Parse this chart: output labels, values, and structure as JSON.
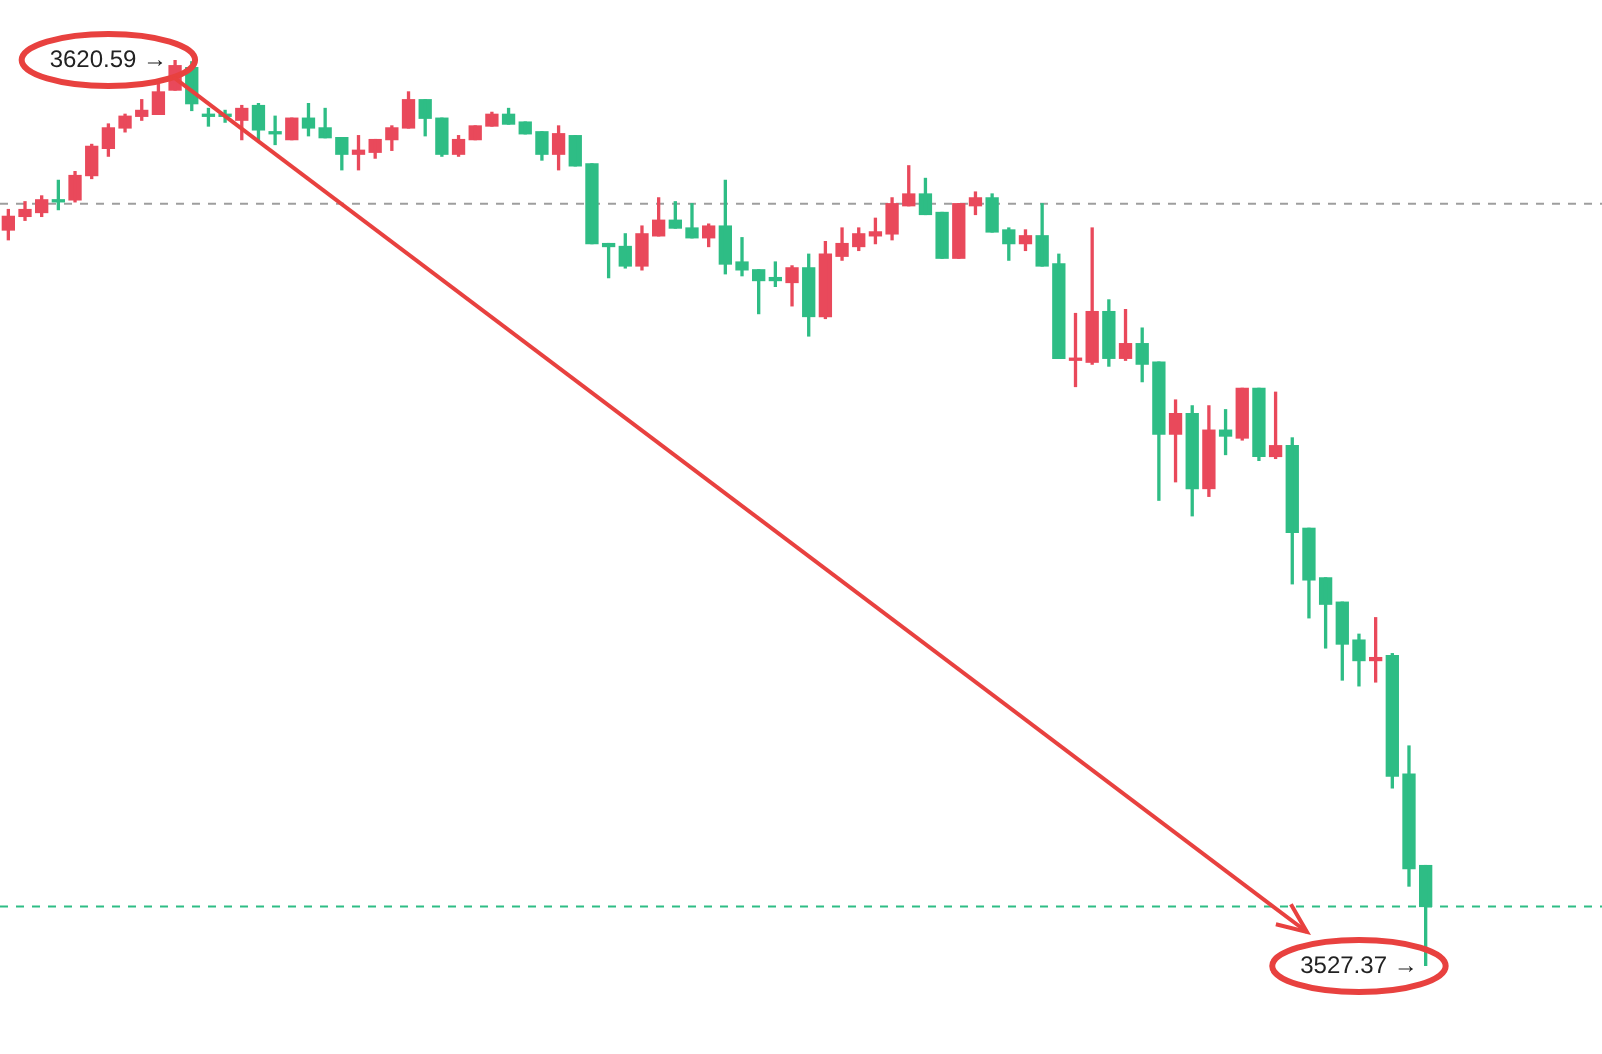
{
  "chart_data": {
    "type": "candlestick",
    "categories": [
      null,
      null,
      null,
      null,
      null,
      null,
      null,
      null,
      null,
      null,
      null,
      null,
      null,
      null,
      null,
      null,
      null,
      null,
      null,
      null,
      null,
      null,
      null,
      null,
      null,
      null,
      null,
      null,
      null,
      null,
      null,
      null,
      null,
      null,
      null,
      null,
      null,
      null,
      null,
      null,
      null,
      null,
      null,
      null,
      null,
      null,
      null,
      null,
      null,
      null,
      null,
      null,
      null,
      null,
      null,
      null,
      null,
      null,
      null,
      null,
      null,
      null,
      null,
      null,
      null,
      null,
      null,
      null,
      null,
      null,
      null,
      null,
      null,
      null,
      null,
      null,
      null,
      null,
      null,
      null,
      null,
      null,
      null,
      null,
      null,
      null
    ],
    "ohlc": [
      [
        3603.1,
        3605.2,
        3602.1,
        3604.5
      ],
      [
        3604.5,
        3606.0,
        3604.1,
        3605.2
      ],
      [
        3604.9,
        3606.6,
        3604.5,
        3606.2
      ],
      [
        3606.2,
        3608.2,
        3605.2,
        3606.0
      ],
      [
        3606.2,
        3609.1,
        3606.0,
        3608.7
      ],
      [
        3608.7,
        3611.9,
        3608.4,
        3611.7
      ],
      [
        3611.5,
        3614.0,
        3610.7,
        3613.6
      ],
      [
        3613.6,
        3615.0,
        3613.2,
        3614.8
      ],
      [
        3614.8,
        3616.5,
        3614.4,
        3615.4
      ],
      [
        3615.0,
        3618.1,
        3615.0,
        3617.3
      ],
      [
        3617.5,
        3620.59,
        3617.5,
        3620.0
      ],
      [
        3619.8,
        3620.4,
        3615.4,
        3616.1
      ],
      [
        3615.0,
        3615.6,
        3613.8,
        3614.8
      ],
      [
        3615.0,
        3615.4,
        3614.2,
        3614.8
      ],
      [
        3614.4,
        3615.9,
        3612.4,
        3615.6
      ],
      [
        3615.9,
        3616.1,
        3612.4,
        3613.4
      ],
      [
        3613.2,
        3614.8,
        3611.9,
        3613.0
      ],
      [
        3612.4,
        3614.6,
        3612.4,
        3614.6
      ],
      [
        3614.6,
        3616.1,
        3612.8,
        3613.6
      ],
      [
        3613.6,
        3615.6,
        3612.6,
        3612.6
      ],
      [
        3612.6,
        3612.6,
        3609.3,
        3610.9
      ],
      [
        3610.9,
        3612.8,
        3609.3,
        3611.3
      ],
      [
        3611.1,
        3612.4,
        3610.5,
        3612.4
      ],
      [
        3612.4,
        3613.8,
        3611.3,
        3613.6
      ],
      [
        3613.6,
        3617.3,
        3613.6,
        3616.5
      ],
      [
        3616.5,
        3616.5,
        3612.8,
        3614.6
      ],
      [
        3614.6,
        3614.6,
        3610.7,
        3610.9
      ],
      [
        3610.9,
        3612.8,
        3610.7,
        3612.4
      ],
      [
        3612.4,
        3613.8,
        3612.4,
        3613.8
      ],
      [
        3613.8,
        3615.2,
        3613.8,
        3615.0
      ],
      [
        3615.0,
        3615.6,
        3614.0,
        3614.0
      ],
      [
        3614.2,
        3614.2,
        3613.0,
        3613.0
      ],
      [
        3613.2,
        3613.2,
        3610.3,
        3610.9
      ],
      [
        3610.9,
        3613.8,
        3609.3,
        3613.0
      ],
      [
        3612.8,
        3612.8,
        3609.7,
        3609.7
      ],
      [
        3609.9,
        3609.9,
        3601.7,
        3601.7
      ],
      [
        3601.7,
        3601.7,
        3598.2,
        3601.4
      ],
      [
        3601.4,
        3602.7,
        3599.2,
        3599.4
      ],
      [
        3599.4,
        3603.5,
        3599.0,
        3602.7
      ],
      [
        3602.5,
        3606.4,
        3602.5,
        3604.1
      ],
      [
        3604.1,
        3606.0,
        3603.3,
        3603.3
      ],
      [
        3603.3,
        3605.8,
        3602.3,
        3602.3
      ],
      [
        3602.3,
        3603.7,
        3601.4,
        3603.5
      ],
      [
        3603.5,
        3608.2,
        3598.6,
        3599.6
      ],
      [
        3599.8,
        3602.3,
        3598.4,
        3599.0
      ],
      [
        3599.0,
        3599.0,
        3594.5,
        3597.9
      ],
      [
        3598.2,
        3599.8,
        3597.3,
        3597.9
      ],
      [
        3597.7,
        3599.4,
        3595.3,
        3599.2
      ],
      [
        3599.2,
        3600.6,
        3592.2,
        3594.2
      ],
      [
        3594.2,
        3601.9,
        3594.0,
        3600.6
      ],
      [
        3600.4,
        3603.3,
        3600.0,
        3601.7
      ],
      [
        3601.4,
        3603.3,
        3601.0,
        3602.7
      ],
      [
        3602.5,
        3604.3,
        3601.7,
        3602.9
      ],
      [
        3602.7,
        3606.4,
        3602.1,
        3605.8
      ],
      [
        3605.6,
        3609.7,
        3605.6,
        3606.8
      ],
      [
        3606.8,
        3608.4,
        3604.7,
        3604.7
      ],
      [
        3604.9,
        3604.9,
        3600.2,
        3600.2
      ],
      [
        3600.2,
        3605.8,
        3600.2,
        3605.8
      ],
      [
        3605.6,
        3607.0,
        3604.7,
        3606.4
      ],
      [
        3606.4,
        3606.8,
        3602.9,
        3602.9
      ],
      [
        3603.1,
        3603.3,
        3600.0,
        3601.7
      ],
      [
        3601.7,
        3603.1,
        3601.0,
        3602.5
      ],
      [
        3602.5,
        3605.8,
        3599.4,
        3599.4
      ],
      [
        3599.6,
        3600.6,
        3589.9,
        3589.9
      ],
      [
        3589.7,
        3594.5,
        3587.0,
        3589.9
      ],
      [
        3589.5,
        3603.3,
        3589.3,
        3594.7
      ],
      [
        3594.7,
        3595.9,
        3589.1,
        3589.9
      ],
      [
        3589.9,
        3594.9,
        3589.7,
        3591.4
      ],
      [
        3591.4,
        3593.0,
        3587.5,
        3589.3
      ],
      [
        3589.5,
        3589.5,
        3575.3,
        3582.1
      ],
      [
        3582.1,
        3585.6,
        3577.2,
        3584.2
      ],
      [
        3584.2,
        3585.0,
        3573.7,
        3576.5
      ],
      [
        3576.5,
        3585.0,
        3575.7,
        3582.5
      ],
      [
        3582.5,
        3584.6,
        3580.0,
        3581.9
      ],
      [
        3581.7,
        3586.8,
        3581.5,
        3586.8
      ],
      [
        3586.8,
        3586.8,
        3579.4,
        3579.8
      ],
      [
        3579.8,
        3586.4,
        3579.6,
        3580.9
      ],
      [
        3580.9,
        3581.7,
        3566.7,
        3572.0
      ],
      [
        3572.4,
        3572.4,
        3563.2,
        3567.1
      ],
      [
        3567.3,
        3567.3,
        3560.1,
        3564.6
      ],
      [
        3564.8,
        3564.8,
        3556.8,
        3560.5
      ],
      [
        3560.9,
        3561.5,
        3556.2,
        3558.8
      ],
      [
        3558.8,
        3563.2,
        3556.6,
        3559.1
      ],
      [
        3559.3,
        3559.5,
        3545.7,
        3546.9
      ],
      [
        3547.1,
        3550.0,
        3535.6,
        3537.4
      ],
      [
        3537.7,
        3537.7,
        3527.37,
        3533.5
      ]
    ],
    "ref_lines": [
      {
        "axis": "y",
        "value": 3605.8,
        "color": "#9e9e9e",
        "line_style": "dashed"
      },
      {
        "axis": "y",
        "value": 3533.5,
        "color": "#2ebd85",
        "line_style": "dashed"
      }
    ],
    "annotations": [
      "3620.59 →",
      "3527.37 →"
    ]
  }
}
